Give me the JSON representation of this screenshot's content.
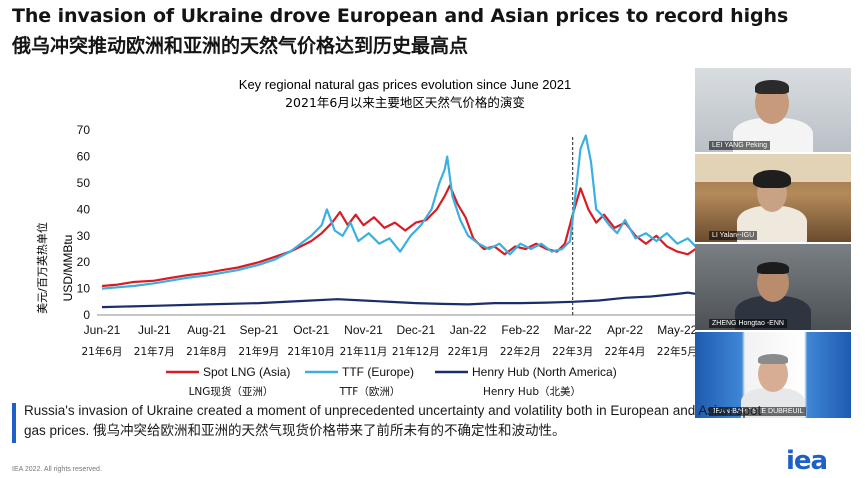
{
  "header": {
    "title_en": "The invasion of Ukraine drove European and Asian prices to record highs",
    "title_zh": "俄乌冲突推动欧洲和亚洲的天然气价格达到历史最高点"
  },
  "colors": {
    "lng": "#d81c24",
    "ttf": "#3bb0e0",
    "hh": "#1c2d6b",
    "accent": "#1f5fc8"
  },
  "chart_data": {
    "type": "line",
    "title": "Key regional natural gas prices evolution since June 2021",
    "subtitle": "2021年6月以来主要地区天然气价格的演变",
    "ylabel": "USD/MMBtu",
    "ylabel_zh": "美元/百万英热单位",
    "ylim": [
      0,
      70
    ],
    "yticks": [
      0,
      10,
      20,
      30,
      40,
      50,
      60,
      70
    ],
    "categories": [
      "Jun-21",
      "Jul-21",
      "Aug-21",
      "Sep-21",
      "Oct-21",
      "Nov-21",
      "Dec-21",
      "Jan-22",
      "Feb-22",
      "Mar-22",
      "Apr-22",
      "May-22"
    ],
    "categories_zh": [
      "21年6月",
      "21年7月",
      "21年8月",
      "21年9月",
      "21年10月",
      "21年11月",
      "21年12月",
      "22年1月",
      "22年2月",
      "22年3月",
      "22年4月",
      "22年5月"
    ],
    "vline_at": "Mar-22",
    "series": [
      {
        "name": "Spot LNG (Asia)",
        "name_zh": "LNG现货（亚洲）",
        "color": "#d81c24",
        "points": [
          [
            0,
            11
          ],
          [
            0.3,
            11.5
          ],
          [
            0.6,
            12.5
          ],
          [
            1.0,
            13
          ],
          [
            1.3,
            14
          ],
          [
            1.6,
            15
          ],
          [
            2.0,
            16
          ],
          [
            2.3,
            17
          ],
          [
            2.6,
            18
          ],
          [
            3.0,
            20
          ],
          [
            3.3,
            22
          ],
          [
            3.6,
            24
          ],
          [
            4.0,
            28
          ],
          [
            4.2,
            31
          ],
          [
            4.4,
            35
          ],
          [
            4.55,
            39
          ],
          [
            4.7,
            34
          ],
          [
            4.85,
            38
          ],
          [
            5.0,
            34
          ],
          [
            5.2,
            37
          ],
          [
            5.4,
            33
          ],
          [
            5.6,
            35
          ],
          [
            5.8,
            32
          ],
          [
            6.0,
            35
          ],
          [
            6.2,
            36
          ],
          [
            6.4,
            40
          ],
          [
            6.55,
            45
          ],
          [
            6.65,
            49
          ],
          [
            6.8,
            42
          ],
          [
            6.95,
            37
          ],
          [
            7.1,
            29
          ],
          [
            7.3,
            25
          ],
          [
            7.5,
            26
          ],
          [
            7.7,
            23
          ],
          [
            7.9,
            26
          ],
          [
            8.1,
            25
          ],
          [
            8.3,
            27
          ],
          [
            8.5,
            25
          ],
          [
            8.7,
            24
          ],
          [
            8.85,
            27
          ],
          [
            9.0,
            38
          ],
          [
            9.15,
            48
          ],
          [
            9.3,
            40
          ],
          [
            9.45,
            35
          ],
          [
            9.6,
            38
          ],
          [
            9.8,
            33
          ],
          [
            10.0,
            35
          ],
          [
            10.2,
            30
          ],
          [
            10.4,
            27
          ],
          [
            10.6,
            30
          ],
          [
            10.8,
            26
          ],
          [
            11.0,
            24
          ],
          [
            11.2,
            23
          ],
          [
            11.35,
            25
          ]
        ]
      },
      {
        "name": "TTF (Europe)",
        "name_zh": "TTF（欧洲）",
        "color": "#3bb0e0",
        "points": [
          [
            0,
            10
          ],
          [
            0.3,
            10.5
          ],
          [
            0.6,
            11
          ],
          [
            1.0,
            12
          ],
          [
            1.3,
            13
          ],
          [
            1.6,
            14
          ],
          [
            2.0,
            15
          ],
          [
            2.3,
            16
          ],
          [
            2.6,
            17
          ],
          [
            3.0,
            19
          ],
          [
            3.3,
            21
          ],
          [
            3.6,
            24
          ],
          [
            3.8,
            27
          ],
          [
            4.0,
            30
          ],
          [
            4.2,
            34
          ],
          [
            4.3,
            40
          ],
          [
            4.45,
            32
          ],
          [
            4.6,
            30
          ],
          [
            4.75,
            35
          ],
          [
            4.9,
            28
          ],
          [
            5.1,
            31
          ],
          [
            5.3,
            27
          ],
          [
            5.5,
            29
          ],
          [
            5.7,
            24
          ],
          [
            5.9,
            30
          ],
          [
            6.1,
            34
          ],
          [
            6.3,
            40
          ],
          [
            6.45,
            50
          ],
          [
            6.55,
            55
          ],
          [
            6.6,
            60
          ],
          [
            6.7,
            45
          ],
          [
            6.85,
            36
          ],
          [
            7.0,
            30
          ],
          [
            7.2,
            27
          ],
          [
            7.4,
            25
          ],
          [
            7.6,
            27
          ],
          [
            7.8,
            23
          ],
          [
            8.0,
            27
          ],
          [
            8.2,
            25
          ],
          [
            8.4,
            27
          ],
          [
            8.6,
            24
          ],
          [
            8.8,
            25
          ],
          [
            8.95,
            28
          ],
          [
            9.05,
            45
          ],
          [
            9.15,
            63
          ],
          [
            9.25,
            68
          ],
          [
            9.35,
            58
          ],
          [
            9.45,
            40
          ],
          [
            9.55,
            38
          ],
          [
            9.7,
            34
          ],
          [
            9.85,
            31
          ],
          [
            10.0,
            36
          ],
          [
            10.2,
            29
          ],
          [
            10.4,
            31
          ],
          [
            10.6,
            28
          ],
          [
            10.8,
            31
          ],
          [
            11.0,
            27
          ],
          [
            11.2,
            29
          ],
          [
            11.35,
            26
          ]
        ]
      },
      {
        "name": "Henry Hub (North America)",
        "name_zh": "Henry Hub（北美）",
        "color": "#1c2d6b",
        "points": [
          [
            0,
            3
          ],
          [
            1,
            3.5
          ],
          [
            2,
            4
          ],
          [
            3,
            4.5
          ],
          [
            4,
            5.5
          ],
          [
            4.5,
            6
          ],
          [
            5,
            5.5
          ],
          [
            6,
            4.5
          ],
          [
            6.5,
            4.2
          ],
          [
            7,
            4
          ],
          [
            7.5,
            4.5
          ],
          [
            8,
            4.5
          ],
          [
            8.5,
            4.7
          ],
          [
            9,
            5
          ],
          [
            9.5,
            5.5
          ],
          [
            10,
            6.5
          ],
          [
            10.5,
            7
          ],
          [
            11,
            8
          ],
          [
            11.2,
            8.5
          ],
          [
            11.35,
            8
          ]
        ]
      }
    ]
  },
  "video": {
    "tiles": [
      {
        "name": "LEI YANG Peking"
      },
      {
        "name": "LI Yalan--IGU"
      },
      {
        "name": "ZHENG Hongtao -ENN"
      },
      {
        "name": "JEAN-BAPTISTE DUBREUIL"
      }
    ]
  },
  "caption": {
    "text_en": "Russia's invasion of Ukraine created a moment of unprecedented uncertainty and volatility both in European and Asian spot gas prices. ",
    "text_zh": "俄乌冲突给欧洲和亚洲的天然气现货价格带来了前所未有的不确定性和波动性。"
  },
  "footer": {
    "copyright": "IEA 2022. All rights reserved.",
    "logo": "iea"
  }
}
